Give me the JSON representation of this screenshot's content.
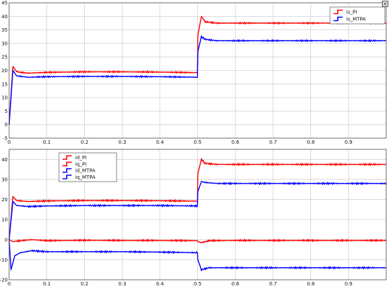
{
  "window": {
    "close_glyph": "×",
    "close_icon": "close-icon"
  },
  "chart_data": [
    {
      "type": "line",
      "title": "",
      "xlabel": "",
      "ylabel": "",
      "xlim": [
        0,
        1
      ],
      "ylim": [
        -5,
        45
      ],
      "yticks": [
        -5,
        0,
        5,
        10,
        15,
        20,
        25,
        30,
        35,
        40,
        45
      ],
      "xticks": [
        0,
        0.1,
        0.2,
        0.3,
        0.4,
        0.5,
        0.6,
        0.7,
        0.8,
        0.9
      ],
      "grid": true,
      "legend_position": "top-right",
      "series": [
        {
          "name": "is_PI",
          "color": "#ff0000",
          "x": [
            0,
            0.01,
            0.02,
            0.05,
            0.1,
            0.2,
            0.3,
            0.4,
            0.4995,
            0.5005,
            0.51,
            0.52,
            0.55,
            0.6,
            0.7,
            0.8,
            0.9,
            1.0
          ],
          "y": [
            0,
            21.5,
            19.5,
            19,
            19.3,
            19.5,
            19.5,
            19.4,
            19.2,
            33,
            40,
            38,
            37.5,
            37.5,
            37.5,
            37.5,
            37.5,
            37.5
          ]
        },
        {
          "name": "is_MTPA",
          "color": "#0000ff",
          "x": [
            0,
            0.01,
            0.02,
            0.05,
            0.1,
            0.2,
            0.3,
            0.4,
            0.4995,
            0.5005,
            0.51,
            0.52,
            0.55,
            0.6,
            0.7,
            0.8,
            0.9,
            1.0
          ],
          "y": [
            0,
            20,
            18,
            17.5,
            17.7,
            17.8,
            17.8,
            17.7,
            17.5,
            27,
            32.5,
            31.5,
            31,
            31,
            31,
            31,
            31,
            31
          ]
        }
      ]
    },
    {
      "type": "line",
      "title": "",
      "xlabel": "",
      "ylabel": "",
      "xlim": [
        0,
        1
      ],
      "ylim": [
        -20,
        45
      ],
      "yticks": [
        -20,
        -10,
        0,
        10,
        20,
        30,
        40
      ],
      "xticks": [
        0,
        0.1,
        0.2,
        0.3,
        0.4,
        0.5,
        0.6,
        0.7,
        0.8,
        0.9
      ],
      "grid": true,
      "legend_position": "top-left",
      "series": [
        {
          "name": "id_PI",
          "color": "#ff0000",
          "x": [
            0,
            0.01,
            0.03,
            0.06,
            0.1,
            0.2,
            0.3,
            0.4,
            0.4995,
            0.5005,
            0.51,
            0.53,
            0.6,
            0.7,
            0.8,
            0.9,
            1.0
          ],
          "y": [
            0,
            -1,
            -0.5,
            0,
            -0.5,
            -0.3,
            -0.4,
            -0.4,
            -0.5,
            -1,
            -1.5,
            -0.5,
            -0.4,
            -0.4,
            -0.4,
            -0.4,
            -0.4
          ]
        },
        {
          "name": "iq_PI",
          "color": "#ff0000",
          "x": [
            0,
            0.01,
            0.02,
            0.05,
            0.1,
            0.2,
            0.3,
            0.4,
            0.4995,
            0.5005,
            0.51,
            0.52,
            0.55,
            0.6,
            0.7,
            0.8,
            0.9,
            1.0
          ],
          "y": [
            0,
            21.5,
            19.5,
            19,
            19.3,
            19.5,
            19.5,
            19.4,
            19.2,
            33,
            40,
            38,
            37.5,
            37.5,
            37.5,
            37.5,
            37.5,
            37.5
          ]
        },
        {
          "name": "id_MTPA",
          "color": "#0000ff",
          "x": [
            0,
            0.005,
            0.015,
            0.03,
            0.06,
            0.1,
            0.2,
            0.3,
            0.4,
            0.4995,
            0.5005,
            0.51,
            0.53,
            0.6,
            0.7,
            0.8,
            0.9,
            1.0
          ],
          "y": [
            0,
            -15,
            -8,
            -6.5,
            -5.5,
            -6,
            -6,
            -6,
            -6.2,
            -6.5,
            -10,
            -15,
            -14,
            -14,
            -14,
            -14,
            -14,
            -14
          ]
        },
        {
          "name": "iq_MTPA",
          "color": "#0000ff",
          "x": [
            0,
            0.01,
            0.02,
            0.05,
            0.1,
            0.2,
            0.3,
            0.4,
            0.4995,
            0.5005,
            0.51,
            0.52,
            0.55,
            0.6,
            0.7,
            0.8,
            0.9,
            1.0
          ],
          "y": [
            0,
            19,
            17,
            16.5,
            16.8,
            17,
            17,
            17,
            16.8,
            24,
            29,
            28.5,
            28,
            28,
            28,
            28,
            28,
            28
          ]
        }
      ]
    }
  ]
}
